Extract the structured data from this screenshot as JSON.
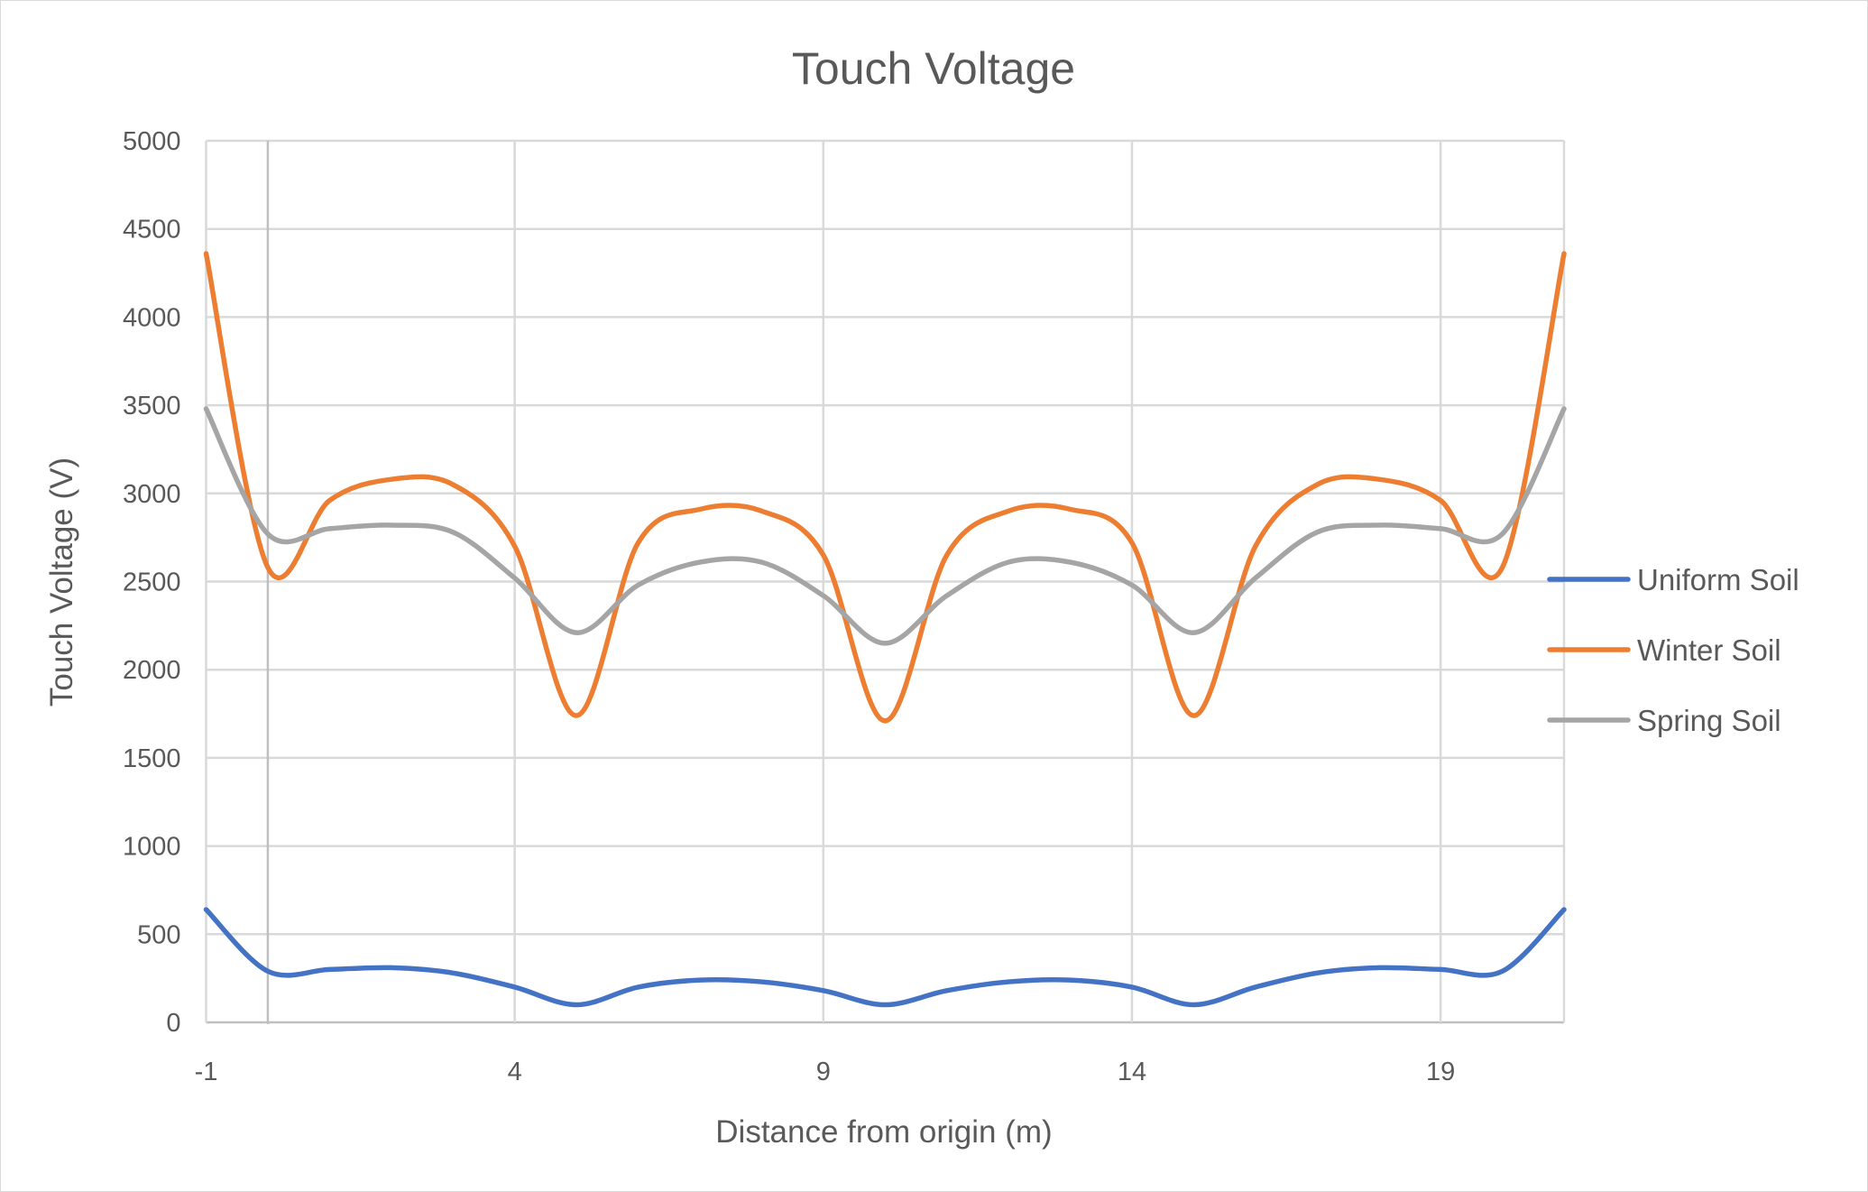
{
  "chart_data": {
    "type": "line",
    "title": "Touch Voltage",
    "xlabel": "Distance from origin (m)",
    "ylabel": "Touch Voltage (V)",
    "xlim": [
      -1,
      21
    ],
    "ylim": [
      0,
      5000
    ],
    "x_ticks": [
      -1,
      4,
      9,
      14,
      19
    ],
    "y_ticks": [
      0,
      500,
      1000,
      1500,
      2000,
      2500,
      3000,
      3500,
      4000,
      4500,
      5000
    ],
    "grid": true,
    "smooth": true,
    "legend": "right",
    "x": [
      -1,
      0,
      1,
      2,
      3,
      4,
      5,
      6,
      7,
      8,
      9,
      10,
      11,
      12,
      13,
      14,
      15,
      16,
      17,
      18,
      19,
      20,
      21
    ],
    "series": [
      {
        "name": "Uniform Soil",
        "color": "#4472c4",
        "values": [
          640,
          290,
          300,
          310,
          280,
          200,
          100,
          200,
          240,
          230,
          180,
          100,
          180,
          230,
          240,
          200,
          100,
          200,
          280,
          310,
          300,
          290,
          640
        ]
      },
      {
        "name": "Winter Soil",
        "color": "#ed7d31",
        "values": [
          4360,
          2580,
          2960,
          3080,
          3050,
          2700,
          1740,
          2720,
          2910,
          2900,
          2650,
          1710,
          2650,
          2900,
          2910,
          2720,
          1740,
          2700,
          3050,
          3080,
          2960,
          2580,
          4360
        ]
      },
      {
        "name": "Spring Soil",
        "color": "#a5a5a5",
        "values": [
          3480,
          2770,
          2800,
          2820,
          2780,
          2520,
          2210,
          2480,
          2610,
          2610,
          2420,
          2150,
          2420,
          2610,
          2610,
          2480,
          2210,
          2520,
          2780,
          2820,
          2800,
          2770,
          3480
        ]
      }
    ]
  }
}
